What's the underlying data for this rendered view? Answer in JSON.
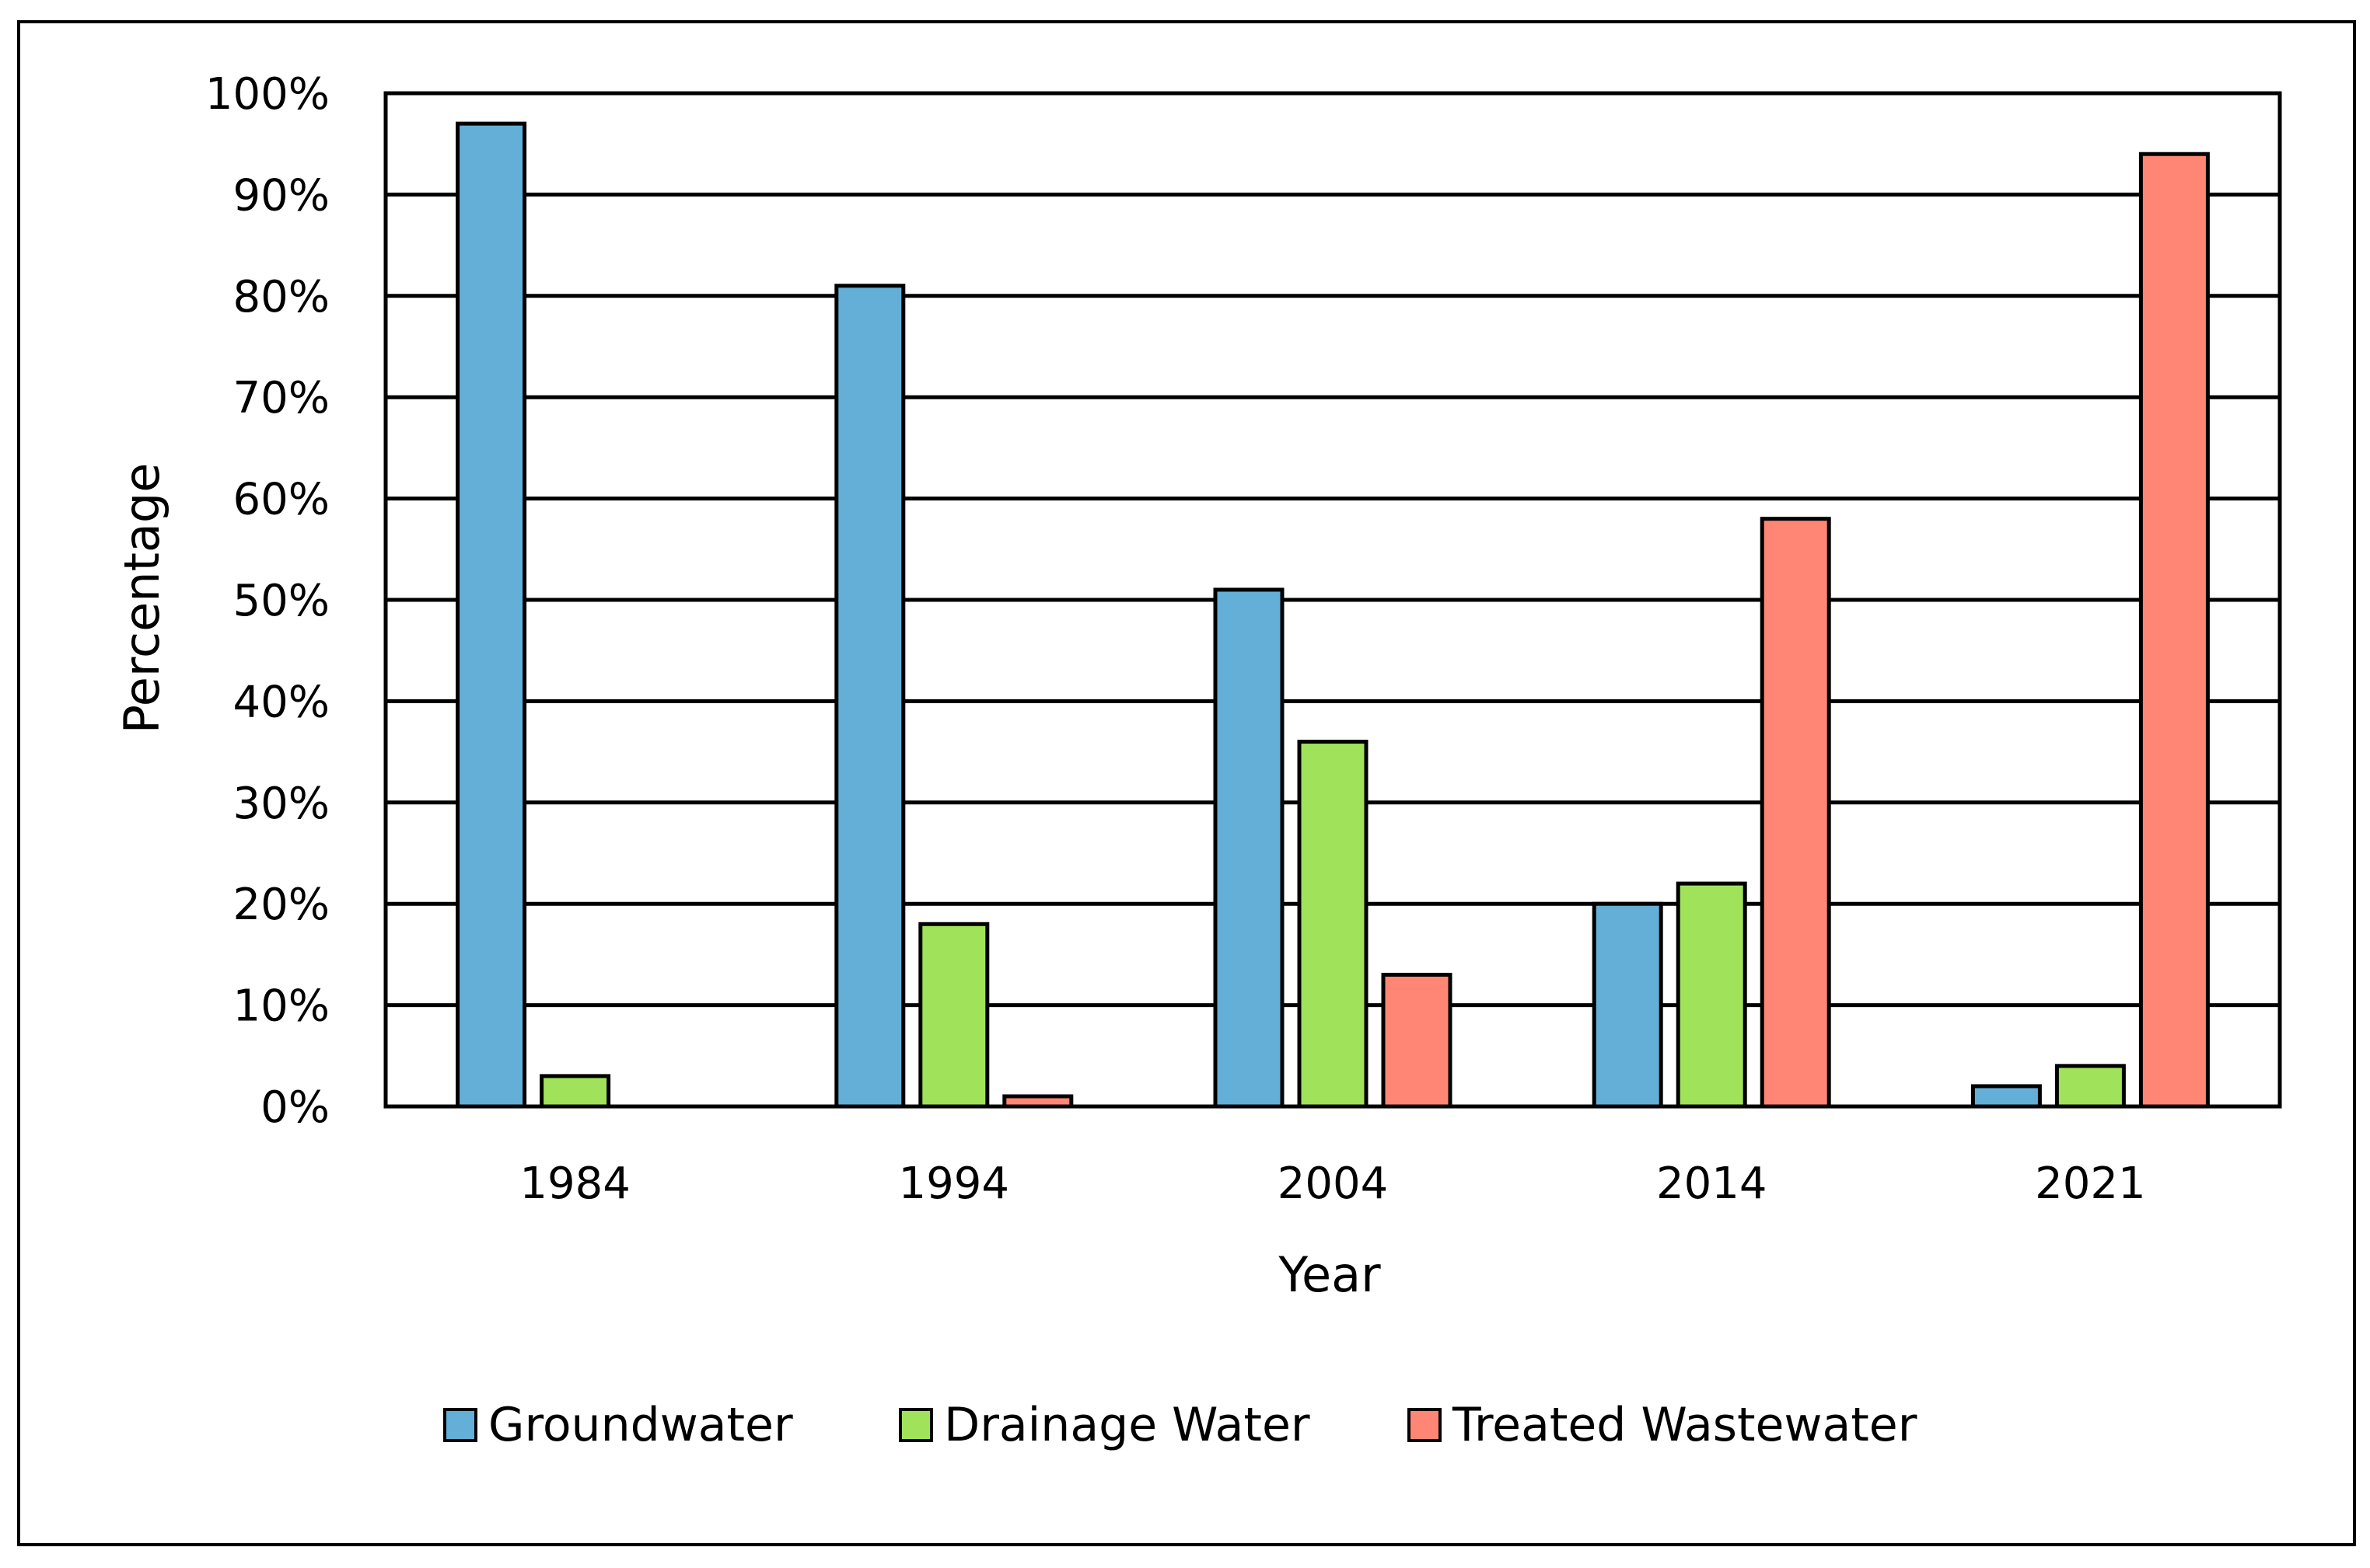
{
  "chart_data": {
    "type": "bar",
    "title": "",
    "xlabel": "Year",
    "ylabel": "Percentage",
    "categories": [
      "1984",
      "1994",
      "2004",
      "2014",
      "2021"
    ],
    "ylim": [
      0,
      100
    ],
    "yticks": [
      0,
      10,
      20,
      30,
      40,
      50,
      60,
      70,
      80,
      90,
      100
    ],
    "ytick_labels": [
      "0%",
      "10%",
      "20%",
      "30%",
      "40%",
      "50%",
      "60%",
      "70%",
      "80%",
      "90%",
      "100%"
    ],
    "grid": true,
    "legend_position": "bottom",
    "series": [
      {
        "name": "Groundwater",
        "color": "#63AFD7",
        "values": [
          97,
          81,
          51,
          20,
          2
        ]
      },
      {
        "name": "Drainage Water",
        "color": "#A0E25A",
        "values": [
          3,
          18,
          36,
          22,
          4
        ]
      },
      {
        "name": "Treated Wastewater",
        "color": "#FF8674",
        "values": [
          0,
          1,
          13,
          58,
          94
        ]
      }
    ]
  }
}
